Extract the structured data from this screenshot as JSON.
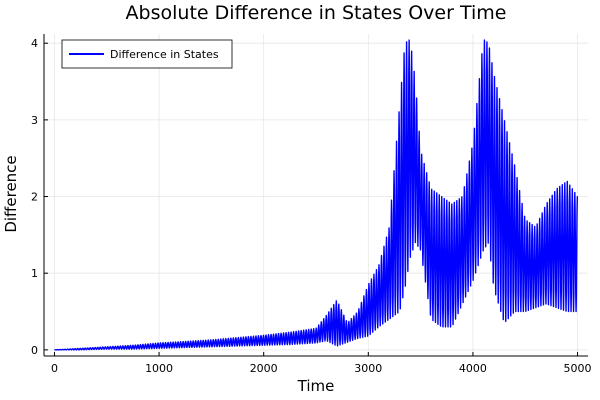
{
  "chart_data": {
    "type": "line",
    "title": "Absolute Difference in States Over Time",
    "xlabel": "Time",
    "ylabel": "Difference",
    "xlim": [
      -100,
      5100
    ],
    "ylim": [
      -0.08,
      4.12
    ],
    "xticks": [
      0,
      1000,
      2000,
      3000,
      4000,
      5000
    ],
    "yticks": [
      0,
      1,
      2,
      3,
      4
    ],
    "grid": true,
    "legend_position": "top-left",
    "series": [
      {
        "name": "Difference in States",
        "color": "#0000ff",
        "envelope_note_x": [
          0,
          250,
          500,
          750,
          1000,
          1250,
          1500,
          1750,
          2000,
          2250,
          2500,
          2600,
          2700,
          2800,
          2900,
          3000,
          3100,
          3200,
          3300,
          3350,
          3400,
          3450,
          3500,
          3600,
          3700,
          3800,
          3900,
          4000,
          4100,
          4150,
          4200,
          4300,
          4400,
          4500,
          4600,
          4700,
          4800,
          4900,
          5000
        ],
        "upper": [
          0.0,
          0.02,
          0.04,
          0.06,
          0.09,
          0.11,
          0.13,
          0.16,
          0.19,
          0.23,
          0.28,
          0.45,
          0.65,
          0.35,
          0.5,
          0.85,
          1.1,
          1.6,
          3.2,
          4.0,
          4.05,
          3.5,
          2.6,
          2.1,
          2.0,
          1.9,
          2.0,
          2.7,
          4.05,
          4.0,
          3.6,
          3.0,
          2.4,
          1.7,
          1.6,
          1.9,
          2.1,
          2.2,
          2.0
        ],
        "lower": [
          0.0,
          0.0,
          0.01,
          0.01,
          0.02,
          0.03,
          0.04,
          0.05,
          0.06,
          0.07,
          0.09,
          0.12,
          0.05,
          0.1,
          0.15,
          0.18,
          0.3,
          0.4,
          0.5,
          0.8,
          1.2,
          1.4,
          1.3,
          0.4,
          0.3,
          0.3,
          0.6,
          0.9,
          1.3,
          1.4,
          0.8,
          0.35,
          0.5,
          0.5,
          0.55,
          0.6,
          0.55,
          0.5,
          0.5
        ]
      }
    ]
  }
}
